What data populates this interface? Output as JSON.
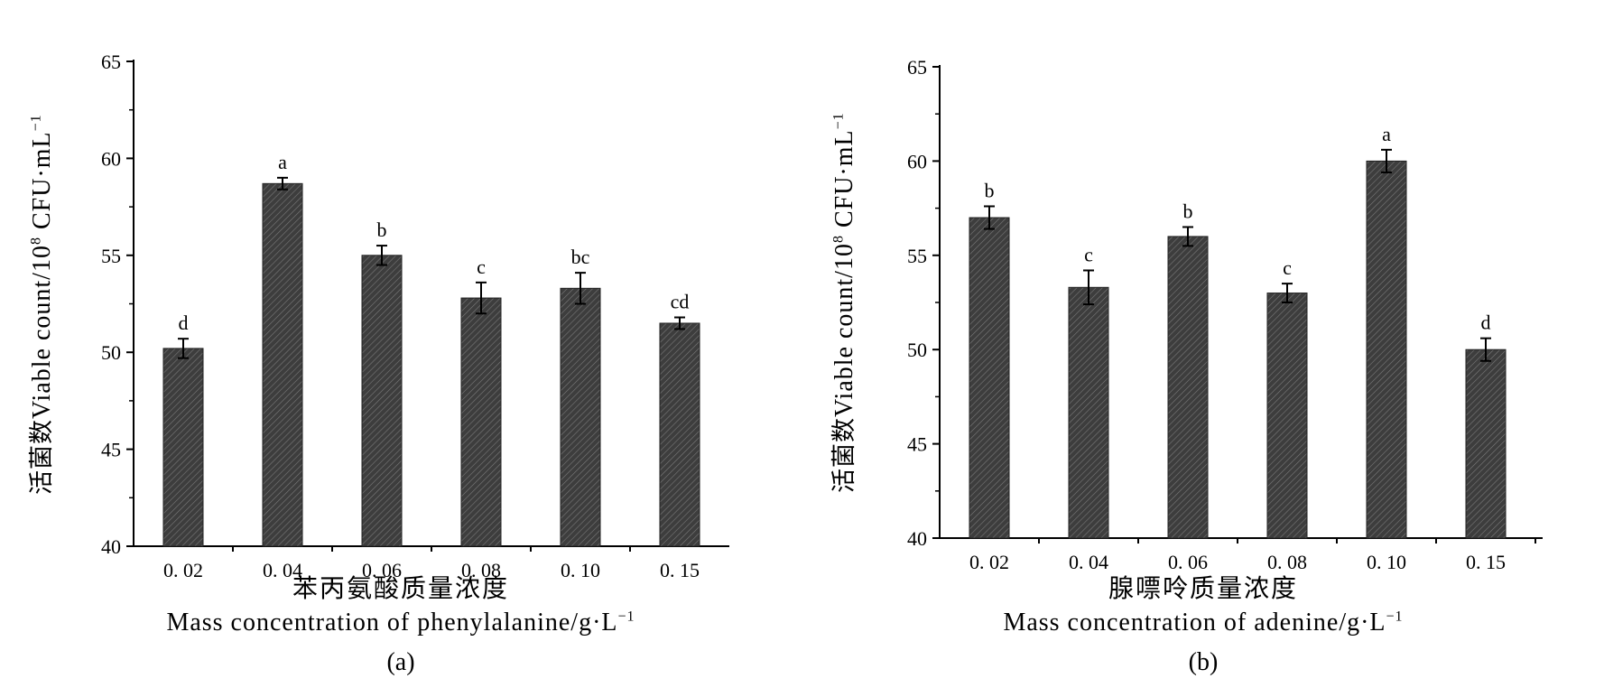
{
  "colors": {
    "bar": "#3d3d3d",
    "axis": "#000000"
  },
  "chart_data": [
    {
      "type": "bar",
      "caption": "(a)",
      "ylabel_zh": "活菌数",
      "ylabel_en": "Viable count/10",
      "ylabel_exp": "8",
      "ylabel_unit": " CFU·mL",
      "ylabel_unit_exp": "−1",
      "xlabel_zh": "苯丙氨酸质量浓度",
      "xlabel_en": "Mass concentration of phenylalanine/g·L",
      "xlabel_exp": "−1",
      "ylim": [
        40,
        65
      ],
      "yticks": [
        40,
        45,
        50,
        55,
        60,
        65
      ],
      "categories": [
        "0. 02",
        "0. 04",
        "0. 06",
        "0. 08",
        "0. 10",
        "0. 15"
      ],
      "values": [
        50.2,
        58.7,
        55.0,
        52.8,
        53.3,
        51.5
      ],
      "errors": [
        0.5,
        0.3,
        0.5,
        0.8,
        0.8,
        0.3
      ],
      "letters": [
        "d",
        "a",
        "b",
        "c",
        "bc",
        "cd"
      ],
      "grid": false
    },
    {
      "type": "bar",
      "caption": "(b)",
      "ylabel_zh": "活菌数",
      "ylabel_en": "Viable count/10",
      "ylabel_exp": "8",
      "ylabel_unit": " CFU·mL",
      "ylabel_unit_exp": "−1",
      "xlabel_zh": "腺嘌呤质量浓度",
      "xlabel_en": "Mass concentration of adenine/g·L",
      "xlabel_exp": "−1",
      "ylim": [
        40,
        65
      ],
      "yticks": [
        40,
        45,
        50,
        55,
        60,
        65
      ],
      "categories": [
        "0. 02",
        "0. 04",
        "0. 06",
        "0. 08",
        "0. 10",
        "0. 15"
      ],
      "values": [
        57.0,
        53.3,
        56.0,
        53.0,
        60.0,
        50.0
      ],
      "errors": [
        0.6,
        0.9,
        0.5,
        0.5,
        0.6,
        0.6
      ],
      "letters": [
        "b",
        "c",
        "b",
        "c",
        "a",
        "d"
      ],
      "grid": false
    }
  ]
}
